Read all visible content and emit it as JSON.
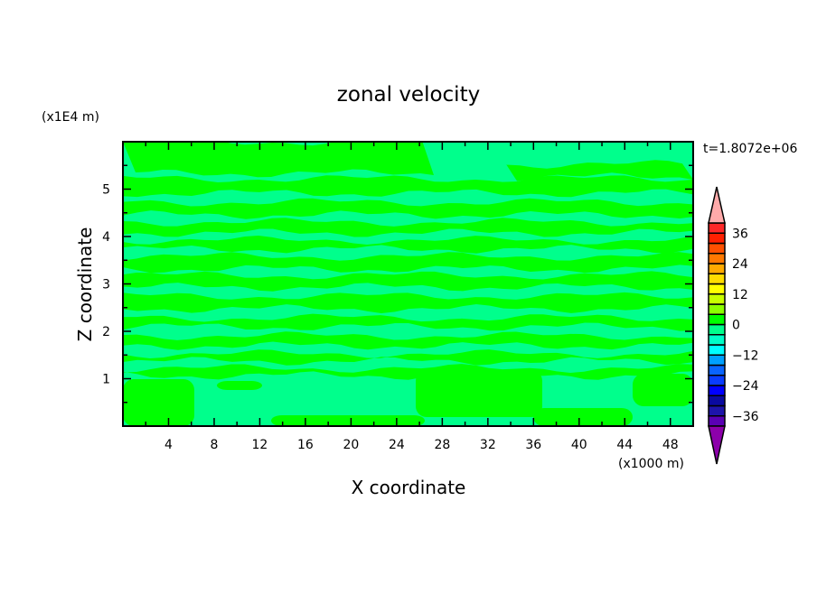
{
  "chart_data": {
    "type": "heatmap",
    "subtype": "filled-contour",
    "title": "zonal velocity",
    "xlabel": "X coordinate",
    "ylabel": "Z coordinate",
    "x_unit_label": "(x1000 m)",
    "y_unit_label": "(x1E4 m)",
    "time_label": "t=1.8072e+06",
    "xlim": [
      0,
      50
    ],
    "ylim": [
      0,
      6
    ],
    "x_ticks": [
      4,
      8,
      12,
      16,
      20,
      24,
      28,
      32,
      36,
      40,
      44,
      48
    ],
    "y_ticks": [
      1,
      2,
      3,
      4,
      5
    ],
    "grid": false,
    "field_summary": "horizontal bands alternating between 0 to 4 and -4 to 0",
    "colorbar": {
      "levels": [
        -36,
        -32,
        -28,
        -24,
        -20,
        -16,
        -12,
        -8,
        -4,
        0,
        4,
        8,
        12,
        16,
        20,
        24,
        28,
        32,
        36
      ],
      "tick_labels": [
        "36",
        "24",
        "12",
        "0",
        "-12",
        "-24",
        "-36"
      ],
      "tick_values": [
        36,
        24,
        12,
        0,
        -12,
        -24,
        -36
      ],
      "colors": [
        "#5a00b4",
        "#1e14aa",
        "#0a0aa0",
        "#0000ff",
        "#0a3cff",
        "#0a64ff",
        "#00a0ff",
        "#00ffff",
        "#00ffc8",
        "#00ff8c",
        "#00ff00",
        "#8cff00",
        "#c8ff00",
        "#ffff00",
        "#ffdc00",
        "#ffaa00",
        "#ff7800",
        "#ff5000",
        "#ff2000",
        "#ff2828"
      ],
      "under_color": "#8c00aa",
      "over_color": "#ffaaaa",
      "extend": "both"
    },
    "field_colors": {
      "positive_0_4": "#00ff00",
      "negative_4_0": "#00ff8c"
    }
  }
}
